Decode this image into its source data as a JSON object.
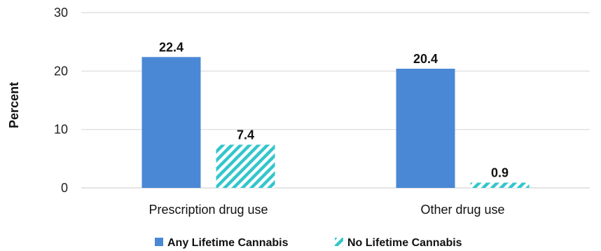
{
  "chart_data": {
    "type": "bar",
    "title": "",
    "xlabel": "",
    "ylabel": "Percent",
    "ylim": [
      0,
      30
    ],
    "yticks": [
      0,
      10,
      20,
      30
    ],
    "grid": true,
    "legend_position": "bottom",
    "categories": [
      "Prescription drug use",
      "Other drug use"
    ],
    "series": [
      {
        "name": "Any Lifetime Cannabis",
        "values": [
          22.4,
          20.4
        ],
        "color": "#4a88d6",
        "pattern": "solid"
      },
      {
        "name": "No Lifetime Cannabis",
        "values": [
          7.4,
          0.9
        ],
        "color": "#33c6cc",
        "pattern": "diagonal-hatch"
      }
    ]
  }
}
